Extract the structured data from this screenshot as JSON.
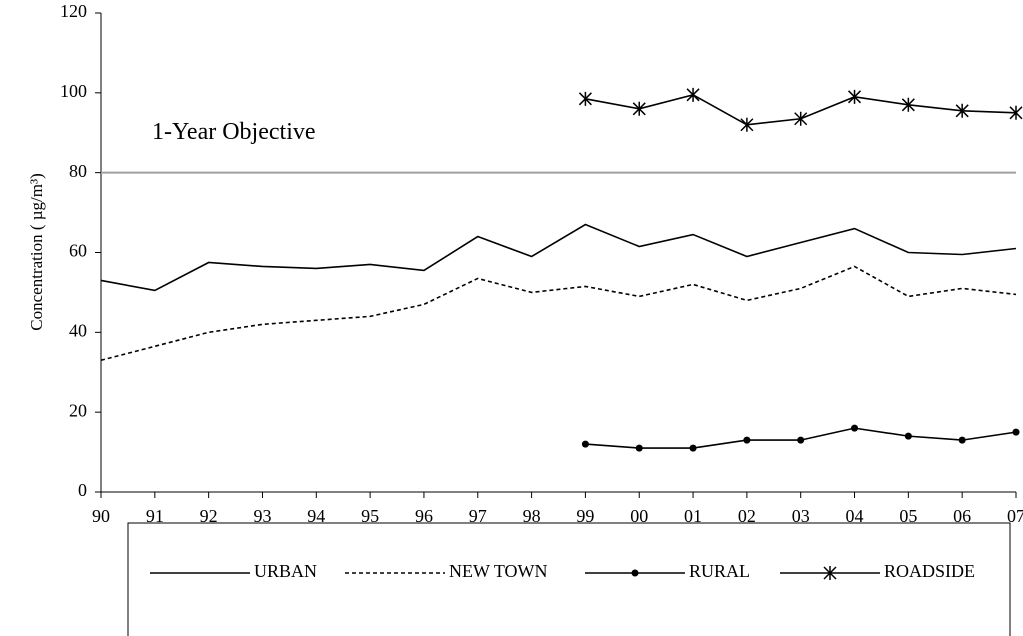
{
  "chart_data": {
    "type": "line",
    "y_label": "Concentration ( µg/m³)",
    "categories": [
      "90",
      "91",
      "92",
      "93",
      "94",
      "95",
      "96",
      "97",
      "98",
      "99",
      "00",
      "01",
      "02",
      "03",
      "04",
      "05",
      "06",
      "07"
    ],
    "series": [
      {
        "name": "URBAN",
        "color": "#000000",
        "dash": "solid",
        "marker": "none",
        "values": [
          53,
          50.5,
          57.5,
          56.5,
          56,
          57,
          55.5,
          64,
          59,
          67,
          61.5,
          64.5,
          59,
          62.5,
          66,
          60,
          59.5,
          61
        ]
      },
      {
        "name": "NEW TOWN",
        "color": "#000000",
        "dash": "dashed",
        "marker": "none",
        "values": [
          33,
          36.5,
          40,
          42,
          43,
          44,
          47,
          53.5,
          50,
          51.5,
          49,
          52,
          48,
          51,
          56.5,
          49,
          51,
          49.5
        ]
      },
      {
        "name": "RURAL",
        "color": "#000000",
        "dash": "solid",
        "marker": "circle",
        "values": [
          null,
          null,
          null,
          null,
          null,
          null,
          null,
          null,
          null,
          12,
          11,
          11,
          13,
          13,
          16,
          14,
          13,
          15
        ]
      },
      {
        "name": "ROADSIDE",
        "color": "#000000",
        "dash": "solid",
        "marker": "asterisk",
        "values": [
          null,
          null,
          null,
          null,
          null,
          null,
          null,
          null,
          null,
          98.5,
          96,
          99.5,
          92,
          93.5,
          99,
          97,
          95.5,
          95
        ]
      }
    ],
    "objective": {
      "value": 80,
      "label": "1-Year Objective",
      "color": "#a0a0a0"
    },
    "ylim": [
      0,
      120
    ],
    "yticks": [
      0,
      20,
      40,
      60,
      80,
      100,
      120
    ]
  }
}
